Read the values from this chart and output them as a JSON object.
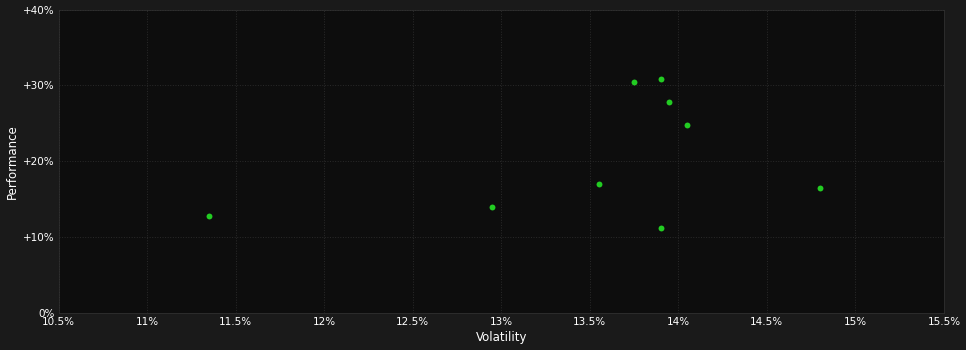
{
  "xlabel": "Volatility",
  "ylabel": "Performance",
  "background_color": "#1a1a1a",
  "plot_bg_color": "#0d0d0d",
  "grid_color": "#2a2a2a",
  "dot_color": "#22cc22",
  "dot_size": 18,
  "xlim": [
    0.105,
    0.155
  ],
  "ylim": [
    0.0,
    0.4
  ],
  "xticks": [
    0.105,
    0.11,
    0.115,
    0.12,
    0.125,
    0.13,
    0.135,
    0.14,
    0.145,
    0.15,
    0.155
  ],
  "yticks": [
    0.0,
    0.1,
    0.2,
    0.3,
    0.4
  ],
  "ytick_labels": [
    "0%",
    "+10%",
    "+20%",
    "+30%",
    "+40%"
  ],
  "xtick_labels": [
    "10.5%",
    "11%",
    "11.5%",
    "12%",
    "12.5%",
    "13%",
    "13.5%",
    "14%",
    "14.5%",
    "15%",
    "15.5%"
  ],
  "points": [
    [
      0.1135,
      0.128
    ],
    [
      0.1295,
      0.14
    ],
    [
      0.1355,
      0.17
    ],
    [
      0.1375,
      0.305
    ],
    [
      0.139,
      0.308
    ],
    [
      0.1395,
      0.278
    ],
    [
      0.1405,
      0.248
    ],
    [
      0.139,
      0.112
    ],
    [
      0.148,
      0.165
    ]
  ]
}
